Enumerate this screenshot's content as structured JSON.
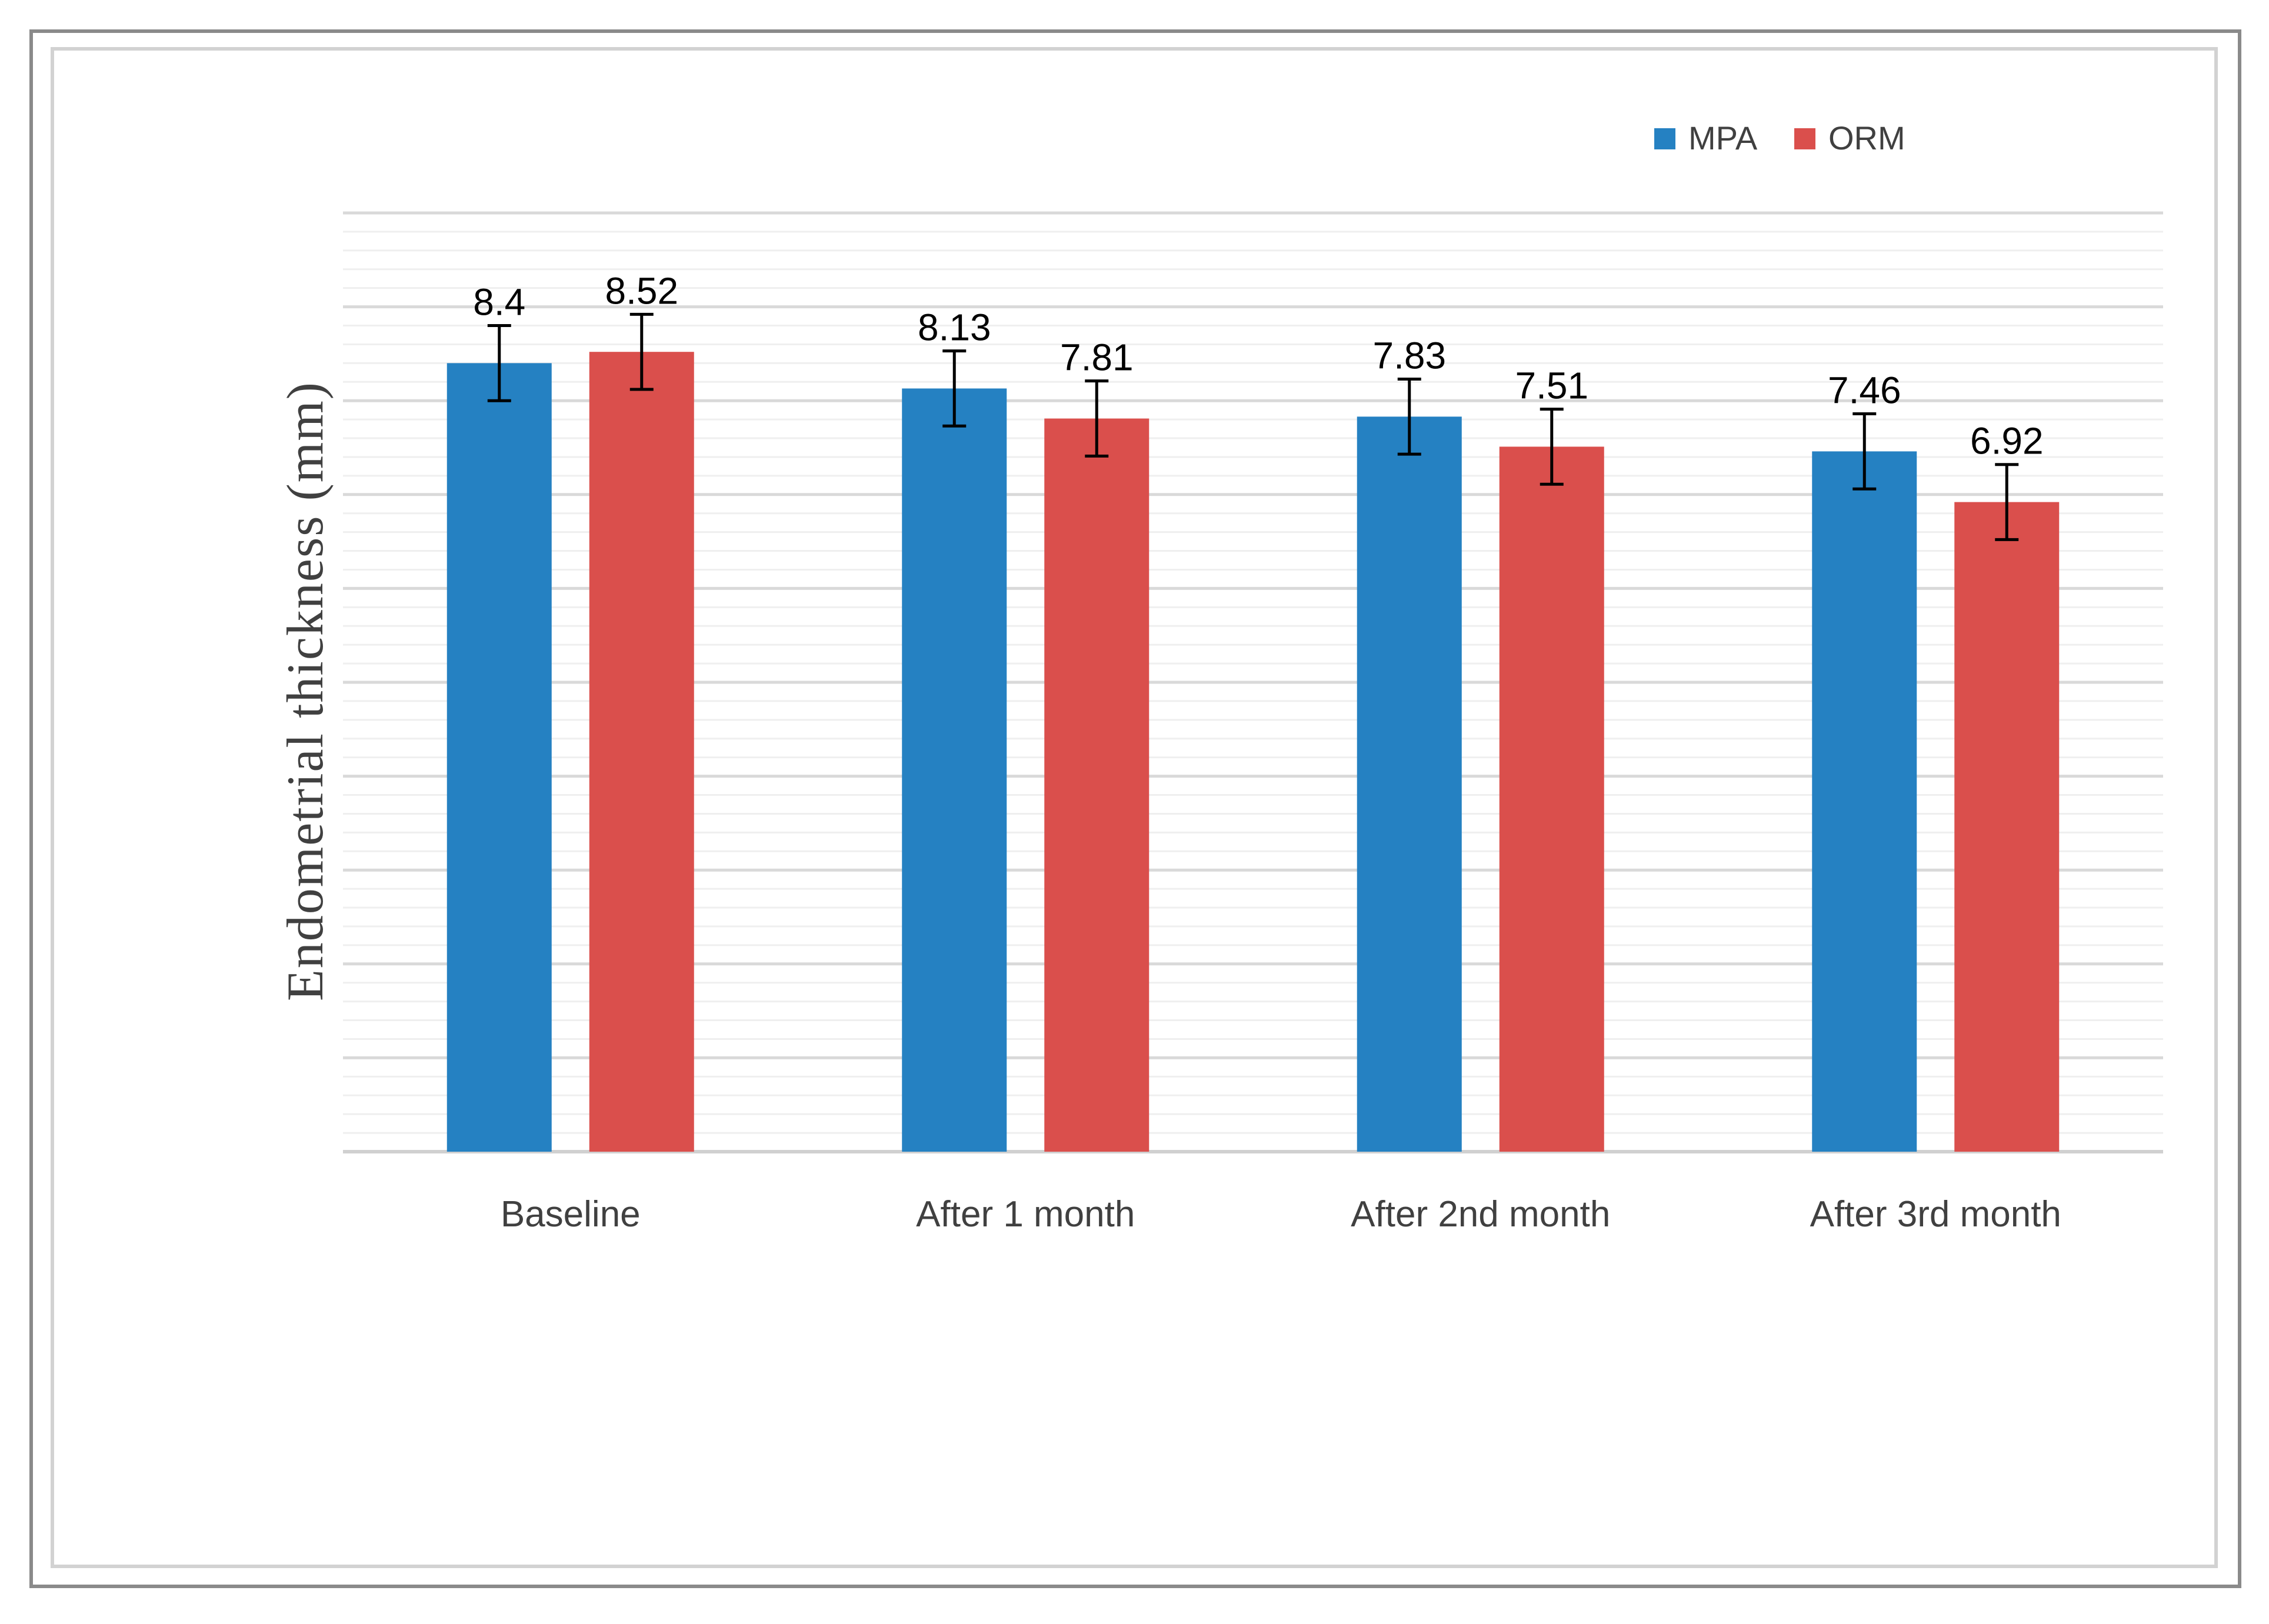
{
  "chart_data": {
    "type": "bar",
    "title": "",
    "xlabel": "",
    "ylabel": "Endometrial  thickness  (mm)",
    "categories": [
      "Baseline",
      "After 1 month",
      "After 2nd month",
      "After 3rd month"
    ],
    "series": [
      {
        "name": "MPA",
        "color": "#2581C2",
        "values": [
          8.4,
          8.13,
          7.83,
          7.46
        ],
        "labels": [
          "8.4",
          "8.13",
          "7.83",
          "7.46"
        ]
      },
      {
        "name": "ORM",
        "color": "#DA4F4C",
        "values": [
          8.52,
          7.81,
          7.51,
          6.92
        ],
        "labels": [
          "8.52",
          "7.81",
          "7.51",
          "6.92"
        ]
      }
    ],
    "error": 0.4,
    "ylim": [
      0,
      10
    ],
    "grid": true,
    "legend": "top-right"
  }
}
